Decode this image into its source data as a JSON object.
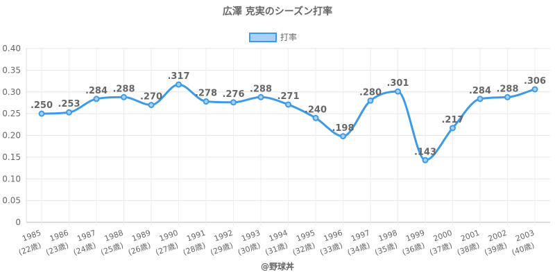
{
  "chart_data": {
    "type": "line",
    "title": "広澤 克実のシーズン打率",
    "legend_position": "top",
    "series": [
      {
        "name": "打率",
        "color": "#3b9be8",
        "values": [
          0.25,
          0.253,
          0.284,
          0.288,
          0.27,
          0.317,
          0.278,
          0.276,
          0.288,
          0.271,
          0.24,
          0.198,
          0.28,
          0.301,
          0.143,
          0.217,
          0.284,
          0.288,
          0.306
        ],
        "data_labels": [
          ".250",
          ".253",
          ".284",
          ".288",
          ".270",
          ".317",
          ".278",
          ".276",
          ".288",
          ".271",
          ".240",
          ".198",
          ".280",
          ".301",
          ".143",
          ".217",
          ".284",
          ".288",
          ".306"
        ]
      }
    ],
    "categories": [
      [
        "1985",
        "(22歳)"
      ],
      [
        "1986",
        "(23歳)"
      ],
      [
        "1987",
        "(24歳)"
      ],
      [
        "1988",
        "(25歳)"
      ],
      [
        "1989",
        "(26歳)"
      ],
      [
        "1990",
        "(27歳)"
      ],
      [
        "1991",
        "(28歳)"
      ],
      [
        "1992",
        "(29歳)"
      ],
      [
        "1993",
        "(30歳)"
      ],
      [
        "1994",
        "(31歳)"
      ],
      [
        "1995",
        "(32歳)"
      ],
      [
        "1996",
        "(33歳)"
      ],
      [
        "1997",
        "(34歳)"
      ],
      [
        "1998",
        "(35歳)"
      ],
      [
        "1999",
        "(36歳)"
      ],
      [
        "2000",
        "(37歳)"
      ],
      [
        "2001",
        "(38歳)"
      ],
      [
        "2002",
        "(39歳)"
      ],
      [
        "2003",
        "(40歳)"
      ]
    ],
    "ylim": [
      0,
      0.4
    ],
    "yticks": [
      "0",
      "0.05",
      "0.10",
      "0.15",
      "0.20",
      "0.25",
      "0.30",
      "0.35",
      "0.40"
    ],
    "grid": true
  },
  "footer": {
    "credit": "@野球丼"
  }
}
